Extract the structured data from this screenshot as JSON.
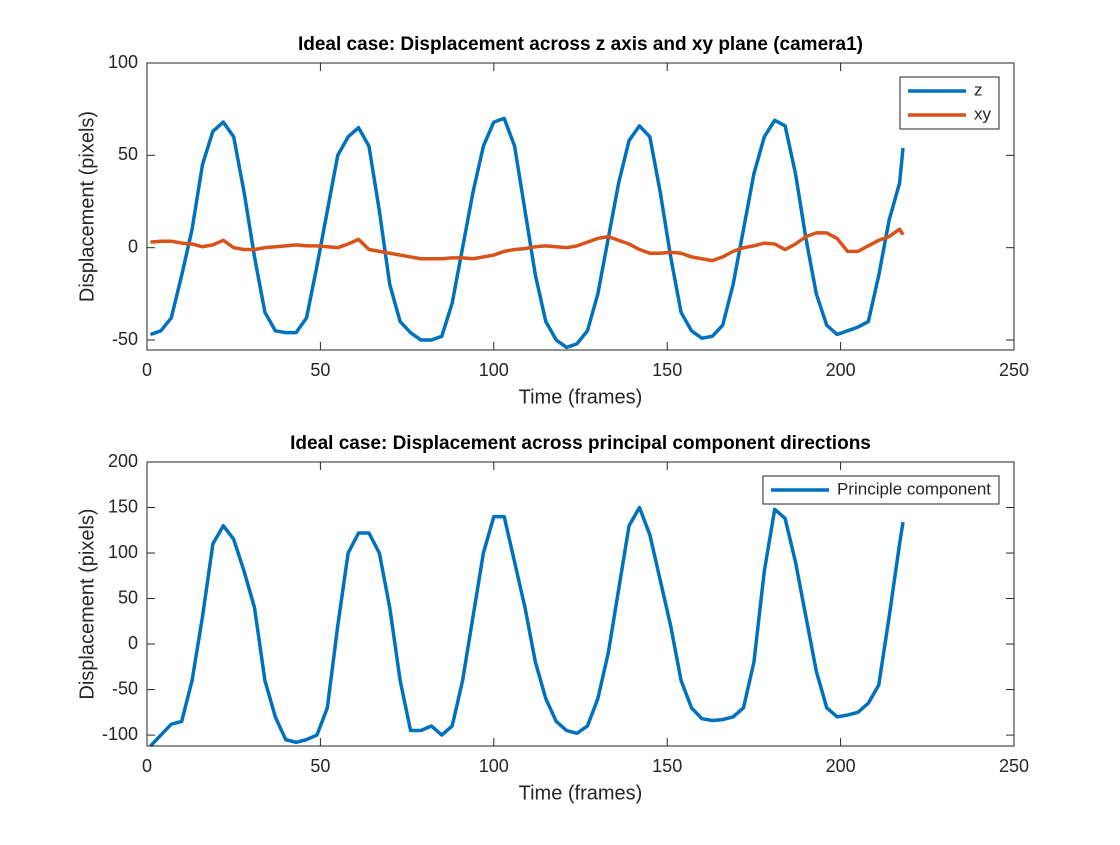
{
  "chart_data": [
    {
      "type": "line",
      "title": "Ideal case: Displacement across z axis and xy plane (camera1)",
      "xlabel": "Time (frames)",
      "ylabel": "Displacement (pixels)",
      "xlim": [
        0,
        250
      ],
      "xticks": [
        0,
        50,
        100,
        150,
        200,
        250
      ],
      "ylim": [
        -55.4,
        100
      ],
      "yticks": [
        -50,
        0,
        50,
        100
      ],
      "legend": "northeast",
      "x": [
        1,
        4,
        7,
        10,
        13,
        16,
        19,
        22,
        25,
        28,
        31,
        34,
        37,
        40,
        43,
        46,
        49,
        52,
        55,
        58,
        61,
        64,
        67,
        70,
        73,
        76,
        79,
        82,
        85,
        88,
        91,
        94,
        97,
        100,
        103,
        106,
        109,
        112,
        115,
        118,
        121,
        124,
        127,
        130,
        133,
        136,
        139,
        142,
        145,
        148,
        151,
        154,
        157,
        160,
        163,
        166,
        169,
        172,
        175,
        178,
        181,
        184,
        187,
        190,
        193,
        196,
        199,
        202,
        205,
        208,
        211,
        214,
        217,
        218
      ],
      "series": [
        {
          "name": "z",
          "color": "#0072bd",
          "values": [
            -47,
            -45,
            -38,
            -15,
            10,
            45,
            63,
            68,
            60,
            30,
            -5,
            -35,
            -45,
            -46,
            -46,
            -38,
            -10,
            20,
            50,
            60,
            65,
            55,
            20,
            -20,
            -40,
            -46,
            -50,
            -50,
            -48,
            -30,
            0,
            30,
            55,
            68,
            70,
            55,
            20,
            -15,
            -40,
            -50,
            -54,
            -52,
            -45,
            -25,
            5,
            35,
            58,
            66,
            60,
            30,
            -5,
            -35,
            -45,
            -49,
            -48,
            -42,
            -20,
            10,
            40,
            60,
            69,
            66,
            40,
            5,
            -25,
            -42,
            -47,
            -45,
            -43,
            -40,
            -15,
            15,
            35,
            54
          ]
        },
        {
          "name": "xy",
          "color": "#d95319",
          "values": [
            3,
            3.5,
            3.5,
            2.5,
            2,
            0.5,
            1.5,
            4,
            0,
            -1,
            -1,
            0,
            0.5,
            1,
            1.5,
            1,
            1,
            0.5,
            0,
            2,
            4.5,
            -1,
            -2,
            -3,
            -4,
            -5,
            -6,
            -6,
            -6,
            -5.5,
            -5.5,
            -6,
            -5,
            -4,
            -2,
            -1,
            -0.5,
            0.5,
            1,
            0.5,
            0,
            1,
            3,
            5,
            6,
            4,
            2,
            -1,
            -3,
            -3,
            -2.5,
            -3,
            -5,
            -6,
            -7,
            -5,
            -2,
            0,
            1,
            2.5,
            2,
            -1,
            2,
            6,
            8,
            8,
            5,
            -2,
            -2,
            1,
            4,
            6,
            10,
            7
          ]
        }
      ]
    },
    {
      "type": "line",
      "title": "Ideal case: Displacement across principal component directions",
      "xlabel": "Time (frames)",
      "ylabel": "Displacement (pixels)",
      "xlim": [
        0,
        250
      ],
      "xticks": [
        0,
        50,
        100,
        150,
        200,
        250
      ],
      "ylim": [
        -112,
        200
      ],
      "yticks": [
        -100,
        -50,
        0,
        50,
        100,
        150,
        200
      ],
      "legend": "northeast",
      "x": [
        1,
        4,
        7,
        10,
        13,
        16,
        19,
        22,
        25,
        28,
        31,
        34,
        37,
        40,
        43,
        46,
        49,
        52,
        55,
        58,
        61,
        64,
        67,
        70,
        73,
        76,
        79,
        82,
        85,
        88,
        91,
        94,
        97,
        100,
        103,
        106,
        109,
        112,
        115,
        118,
        121,
        124,
        127,
        130,
        133,
        136,
        139,
        142,
        145,
        148,
        151,
        154,
        157,
        160,
        163,
        166,
        169,
        172,
        175,
        178,
        181,
        184,
        187,
        190,
        193,
        196,
        199,
        202,
        205,
        208,
        211,
        214,
        217,
        218
      ],
      "series": [
        {
          "name": "Principle component",
          "color": "#0072bd",
          "values": [
            -112,
            -100,
            -88,
            -85,
            -40,
            30,
            110,
            130,
            115,
            80,
            40,
            -40,
            -80,
            -105,
            -108,
            -105,
            -100,
            -70,
            20,
            100,
            122,
            122,
            100,
            40,
            -40,
            -95,
            -95,
            -90,
            -100,
            -90,
            -40,
            30,
            100,
            140,
            140,
            90,
            40,
            -20,
            -60,
            -85,
            -95,
            -98,
            -90,
            -60,
            -10,
            60,
            130,
            150,
            120,
            70,
            20,
            -40,
            -70,
            -82,
            -84,
            -83,
            -80,
            -70,
            -20,
            80,
            148,
            138,
            90,
            30,
            -30,
            -70,
            -80,
            -78,
            -75,
            -65,
            -45,
            30,
            110,
            134
          ]
        }
      ]
    }
  ]
}
